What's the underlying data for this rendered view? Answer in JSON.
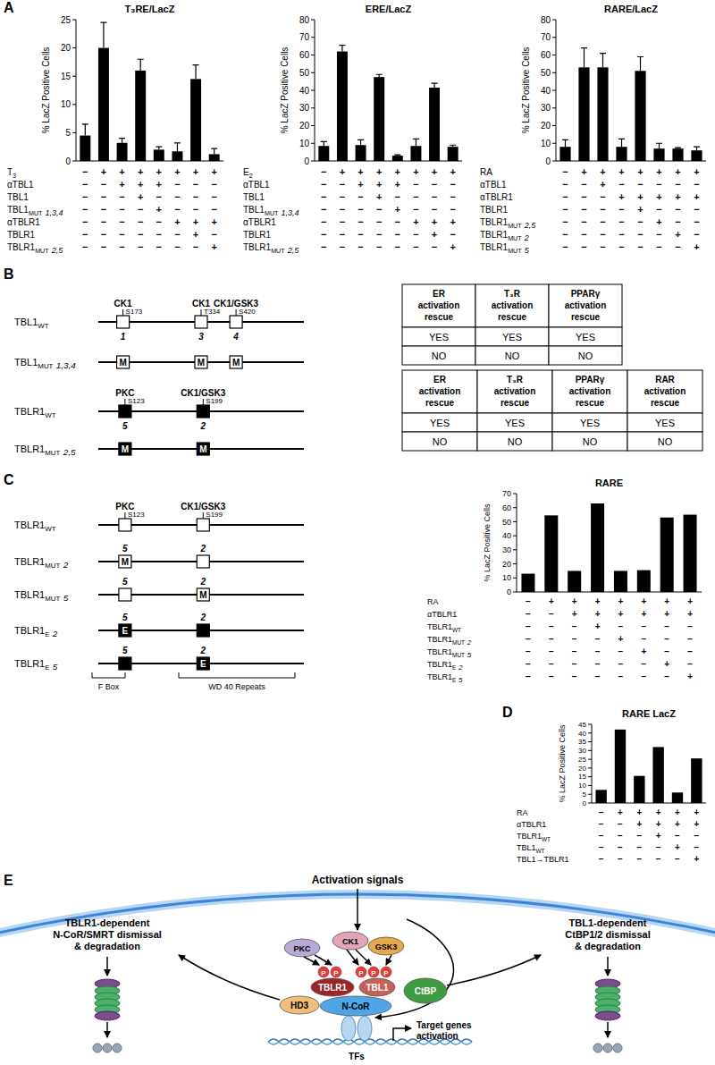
{
  "panel_labels": [
    "A",
    "B",
    "C",
    "D",
    "E"
  ],
  "chart_data": [
    {
      "type": "bar",
      "title": "T₃RE/LacZ",
      "y_label": "% LacZ Positive Cells",
      "color": "#000000",
      "categories": [
        null,
        null,
        null,
        null,
        null,
        null,
        null,
        null
      ],
      "values": [
        4.5,
        20,
        3.2,
        16,
        2,
        1.7,
        14.5,
        1.2
      ],
      "errors": [
        2,
        4.5,
        0.8,
        2,
        0.5,
        1.5,
        2.5,
        1
      ],
      "ylim": [
        0,
        25
      ],
      "yticks": [
        0,
        5,
        10,
        15,
        20,
        25
      ],
      "conditions": [
        {
          "label": "T",
          "sub": "3",
          "signs": [
            "−",
            "+",
            "+",
            "+",
            "+",
            "+",
            "+",
            "+"
          ]
        },
        {
          "label": "αTBL1",
          "signs": [
            "−",
            "−",
            "+",
            "+",
            "+",
            "−",
            "−",
            "−"
          ]
        },
        {
          "label": "TBL1",
          "signs": [
            "−",
            "−",
            "−",
            "+",
            "−",
            "−",
            "−",
            "−"
          ]
        },
        {
          "label": "TBL1",
          "sub": "MUT",
          "tail": "1,3,4",
          "signs": [
            "−",
            "−",
            "−",
            "−",
            "+",
            "−",
            "−",
            "−"
          ]
        },
        {
          "label": "αTBLR1",
          "signs": [
            "−",
            "−",
            "−",
            "−",
            "−",
            "+",
            "+",
            "+"
          ]
        },
        {
          "label": "TBLR1",
          "signs": [
            "−",
            "−",
            "−",
            "−",
            "−",
            "−",
            "+",
            "−"
          ]
        },
        {
          "label": "TBLR1",
          "sub": "MUT",
          "tail": "2,5",
          "signs": [
            "−",
            "−",
            "−",
            "−",
            "−",
            "−",
            "−",
            "+"
          ]
        }
      ]
    },
    {
      "type": "bar",
      "title": "ERE/LacZ",
      "y_label": "% LacZ Positive Cells",
      "color": "#000000",
      "categories": [
        null,
        null,
        null,
        null,
        null,
        null,
        null,
        null
      ],
      "values": [
        8.5,
        62,
        9,
        47.5,
        3,
        8.5,
        41.5,
        8
      ],
      "errors": [
        2.5,
        3.5,
        3,
        1.5,
        0.5,
        4,
        2.5,
        1
      ],
      "ylim": [
        0,
        80
      ],
      "yticks": [
        0,
        10,
        20,
        30,
        40,
        50,
        60,
        70,
        80
      ],
      "conditions": [
        {
          "label": "E",
          "sub": "2",
          "signs": [
            "−",
            "+",
            "+",
            "+",
            "+",
            "+",
            "+",
            "+"
          ]
        },
        {
          "label": "αTBL1",
          "signs": [
            "−",
            "−",
            "+",
            "+",
            "+",
            "−",
            "−",
            "−"
          ]
        },
        {
          "label": "TBL1",
          "signs": [
            "−",
            "−",
            "−",
            "+",
            "−",
            "−",
            "−",
            "−"
          ]
        },
        {
          "label": "TBL1",
          "sub": "MUT",
          "tail": "1,3,4",
          "signs": [
            "−",
            "−",
            "−",
            "−",
            "+",
            "−",
            "−",
            "−"
          ]
        },
        {
          "label": "αTBLR1",
          "signs": [
            "−",
            "−",
            "−",
            "−",
            "−",
            "+",
            "+",
            "+"
          ]
        },
        {
          "label": "TBLR1",
          "signs": [
            "−",
            "−",
            "−",
            "−",
            "−",
            "−",
            "+",
            "−"
          ]
        },
        {
          "label": "TBLR1",
          "sub": "MUT",
          "tail": "2,5",
          "signs": [
            "−",
            "−",
            "−",
            "−",
            "−",
            "−",
            "−",
            "+"
          ]
        }
      ]
    },
    {
      "type": "bar",
      "title": "RARE/LacZ",
      "y_label": "% LacZ Positive Cells",
      "color": "#000000",
      "categories": [
        null,
        null,
        null,
        null,
        null,
        null,
        null,
        null
      ],
      "values": [
        8,
        53,
        53,
        8,
        51,
        7,
        7,
        6
      ],
      "errors": [
        4,
        11,
        8,
        4.5,
        8,
        3,
        0.5,
        2
      ],
      "ylim": [
        0,
        80
      ],
      "yticks": [
        0,
        10,
        20,
        30,
        40,
        50,
        60,
        70,
        80
      ],
      "conditions": [
        {
          "label": "RA",
          "signs": [
            "−",
            "+",
            "+",
            "+",
            "+",
            "+",
            "+",
            "+"
          ]
        },
        {
          "label": "αTBL1",
          "signs": [
            "−",
            "−",
            "+",
            "−",
            "−",
            "−",
            "−",
            "−"
          ]
        },
        {
          "label": "αTBLR1",
          "signs": [
            "−",
            "−",
            "−",
            "+",
            "+",
            "+",
            "+",
            "+"
          ]
        },
        {
          "label": "TBLR1",
          "signs": [
            "−",
            "−",
            "−",
            "−",
            "+",
            "−",
            "−",
            "−"
          ]
        },
        {
          "label": "TBLR1",
          "sub": "MUT",
          "tail": "2,5",
          "signs": [
            "−",
            "−",
            "−",
            "−",
            "−",
            "+",
            "−",
            "−"
          ]
        },
        {
          "label": "TBLR1",
          "sub": "MUT",
          "tail": "2",
          "signs": [
            "−",
            "−",
            "−",
            "−",
            "−",
            "−",
            "+",
            "−"
          ]
        },
        {
          "label": "TBLR1",
          "sub": "MUT",
          "tail": "5",
          "signs": [
            "−",
            "−",
            "−",
            "−",
            "−",
            "−",
            "−",
            "+"
          ]
        }
      ]
    },
    {
      "type": "bar",
      "title": "RARE",
      "y_label": "% LacZ Positive Cells",
      "color": "#000000",
      "categories": [
        null,
        null,
        null,
        null,
        null,
        null,
        null,
        null
      ],
      "values": [
        13,
        54.5,
        15,
        63,
        15,
        15.5,
        53,
        55
      ],
      "ylim": [
        0,
        70
      ],
      "yticks": [
        0,
        10,
        20,
        30,
        40,
        50,
        60,
        70
      ],
      "conditions": [
        {
          "label": "RA",
          "signs": [
            "−",
            "+",
            "+",
            "+",
            "+",
            "+",
            "+",
            "+"
          ]
        },
        {
          "label": "αTBLR1",
          "signs": [
            "−",
            "−",
            "+",
            "+",
            "+",
            "+",
            "+",
            "+"
          ]
        },
        {
          "label": "TBLR1",
          "sub": "WT",
          "signs": [
            "−",
            "−",
            "−",
            "+",
            "−",
            "−",
            "−",
            "−"
          ]
        },
        {
          "label": "TBLR1",
          "sub": "MUT",
          "tail": "2",
          "signs": [
            "−",
            "−",
            "−",
            "−",
            "+",
            "−",
            "−",
            "−"
          ]
        },
        {
          "label": "TBLR1",
          "sub": "MUT",
          "tail": "5",
          "signs": [
            "−",
            "−",
            "−",
            "−",
            "−",
            "+",
            "−",
            "−"
          ]
        },
        {
          "label": "TBLR1",
          "sub": "E",
          "tail": "2",
          "signs": [
            "−",
            "−",
            "−",
            "−",
            "−",
            "−",
            "+",
            "−"
          ]
        },
        {
          "label": "TBLR1",
          "sub": "E",
          "tail": "5",
          "signs": [
            "−",
            "−",
            "−",
            "−",
            "−",
            "−",
            "−",
            "+"
          ]
        }
      ]
    },
    {
      "type": "bar",
      "title": "RARE LacZ",
      "y_label": "% LacZ Positive Cells",
      "color": "#000000",
      "categories": [
        null,
        null,
        null,
        null,
        null,
        null
      ],
      "values": [
        7.5,
        42,
        15.5,
        32,
        6,
        25.5
      ],
      "ylim": [
        0,
        45
      ],
      "yticks": [
        0,
        5,
        10,
        15,
        20,
        25,
        30,
        35,
        40,
        45
      ],
      "conditions": [
        {
          "label": "RA",
          "signs": [
            "−",
            "+",
            "+",
            "+",
            "+",
            "+"
          ]
        },
        {
          "label": "αTBLR1",
          "signs": [
            "−",
            "−",
            "+",
            "+",
            "+",
            "+"
          ]
        },
        {
          "label": "TBLR1",
          "sub": "WT",
          "signs": [
            "−",
            "−",
            "−",
            "+",
            "−",
            "−"
          ]
        },
        {
          "label": "TBL1",
          "sub": "WT",
          "signs": [
            "−",
            "−",
            "−",
            "−",
            "+",
            "−"
          ]
        },
        {
          "label": "TBL1→TBLR1",
          "signs": [
            "−",
            "−",
            "−",
            "−",
            "−",
            "+"
          ]
        }
      ]
    }
  ],
  "schematics": {
    "B": [
      {
        "label": "TBL1",
        "sub": "WT",
        "color": "#ffffff",
        "sites": [
          {
            "kinase": "CK1",
            "residue": "S173",
            "number": "1"
          },
          {
            "kinase": "CK1",
            "residue": "T334",
            "number": "3"
          },
          {
            "kinase": "CK1/GSK3",
            "residue": "S420",
            "number": "4"
          }
        ]
      },
      {
        "label": "TBL1",
        "sub": "MUT",
        "tail": "1,3,4",
        "color": "#ffffff",
        "sites": [
          {
            "inner": "M"
          },
          {
            "inner": "M"
          },
          {
            "inner": "M"
          }
        ]
      },
      {
        "label": "TBLR1",
        "sub": "WT",
        "color": "#000000",
        "sites": [
          {
            "kinase": "PKC",
            "residue": "S123",
            "number": "5"
          },
          {
            "kinase": "CK1/GSK3",
            "residue": "S199",
            "number": "2"
          }
        ]
      },
      {
        "label": "TBLR1",
        "sub": "MUT",
        "tail": "2,5",
        "color": "#000000",
        "sites": [
          {
            "inner": "M"
          },
          {
            "inner": "M"
          }
        ]
      }
    ],
    "C": [
      {
        "label": "TBLR1",
        "sub": "WT",
        "color": "#ffffff",
        "sites": [
          {
            "kinase": "PKC",
            "residue": "S123"
          },
          {
            "kinase": "CK1/GSK3",
            "residue": "S199"
          }
        ]
      },
      {
        "label": "TBLR1",
        "sub": "MUT",
        "tail": "2",
        "color": "#ffffff",
        "sites": [
          {
            "number": "5",
            "inner": "M"
          },
          {
            "number": "2"
          }
        ]
      },
      {
        "label": "TBLR1",
        "sub": "MUT",
        "tail": "5",
        "color": "#ffffff",
        "sites": [
          {
            "number": "5"
          },
          {
            "number": "2",
            "inner": "M"
          }
        ]
      },
      {
        "label": "TBLR1",
        "sub": "E",
        "tail": "2",
        "color": "#000000",
        "sites": [
          {
            "number": "5",
            "inner": "E"
          },
          {
            "number": "2"
          }
        ]
      },
      {
        "label": "TBLR1",
        "sub": "E",
        "tail": "5",
        "color": "#000000",
        "sites": [
          {
            "number": "5"
          },
          {
            "number": "2",
            "inner": "E"
          }
        ]
      }
    ]
  },
  "schematic_domains": [
    {
      "label": "F Box"
    },
    {
      "label": "WD 40 Repeats"
    }
  ],
  "tables": [
    {
      "headers": [
        "ER activation rescue",
        "T₃R activation rescue",
        "PPARγ activation rescue"
      ],
      "rows": [
        [
          "YES",
          "YES",
          "YES"
        ],
        [
          "NO",
          "NO",
          "NO"
        ]
      ]
    },
    {
      "headers": [
        "ER activation rescue",
        "T₃R activation rescue",
        "PPARγ activation rescue",
        "RAR activation rescue"
      ],
      "rows": [
        [
          "YES",
          "YES",
          "YES",
          "YES"
        ],
        [
          "NO",
          "NO",
          "NO",
          "NO"
        ]
      ]
    }
  ],
  "pathway": {
    "signal": "Activation signals",
    "kinases": [
      "PKC",
      "CK1",
      "GSK3"
    ],
    "phosphates": [
      "P",
      "P",
      "P",
      "P",
      "P"
    ],
    "complex": [
      "TBLR1",
      "TBL1",
      "CtBP",
      "HD3",
      "N-CoR"
    ],
    "factors": "TFs",
    "target": [
      "Target genes",
      "activation"
    ],
    "left_outcome": [
      "TBLR1-dependent",
      "N-CoR/SMRT dismissal",
      "& degradation"
    ],
    "right_outcome": [
      "TBL1-dependent",
      "CtBP1/2 dismissal",
      "& degradation"
    ]
  }
}
